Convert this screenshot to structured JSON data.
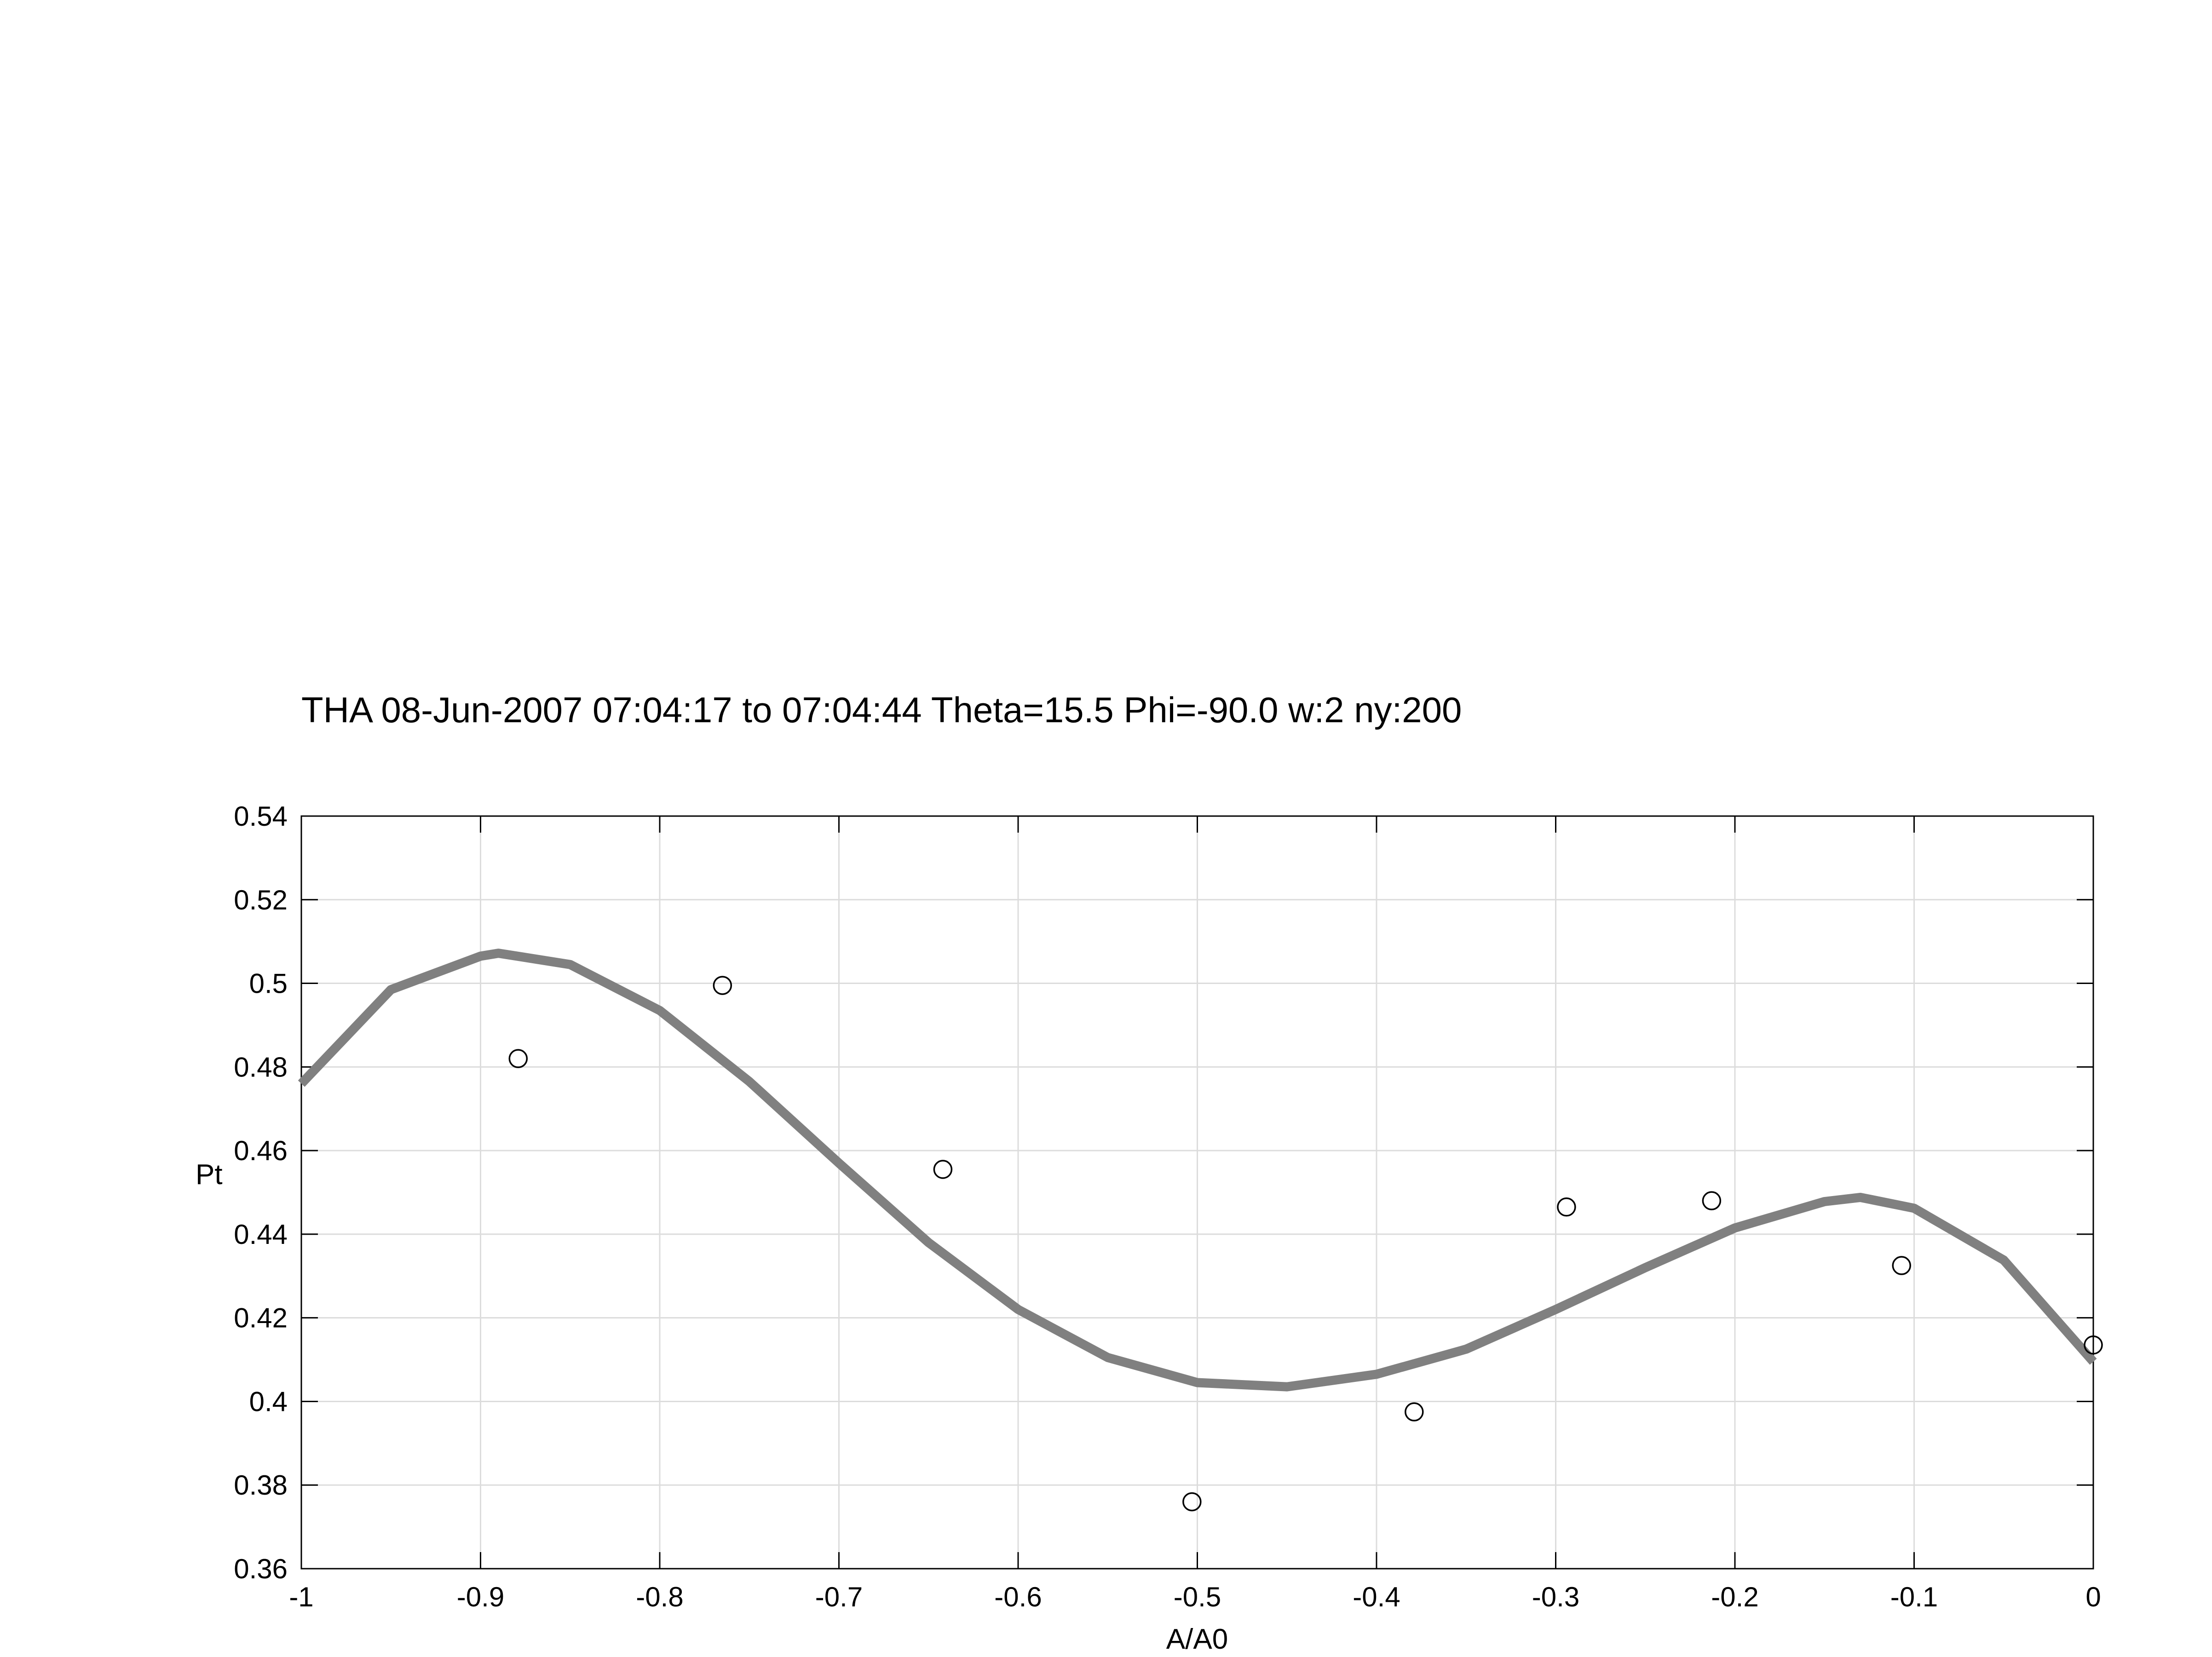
{
  "chart_data": {
    "type": "scatter",
    "title": "THA 08-Jun-2007 07:04:17 to 07:04:44 Theta=15.5 Phi=-90.0 w:2 ny:200",
    "xlabel": "A/A0",
    "ylabel": "Pt",
    "xlim": [
      -1,
      0
    ],
    "ylim": [
      0.36,
      0.54
    ],
    "xticks": [
      -1,
      -0.9,
      -0.8,
      -0.7,
      -0.6,
      -0.5,
      -0.4,
      -0.3,
      -0.2,
      -0.1,
      0
    ],
    "xtick_labels": [
      "-1",
      "-0.9",
      "-0.8",
      "-0.7",
      "-0.6",
      "-0.5",
      "-0.4",
      "-0.3",
      "-0.2",
      "-0.1",
      "0"
    ],
    "yticks": [
      0.36,
      0.38,
      0.4,
      0.42,
      0.44,
      0.46,
      0.48,
      0.5,
      0.52,
      0.54
    ],
    "ytick_labels": [
      "0.36",
      "0.38",
      "0.4",
      "0.42",
      "0.44",
      "0.46",
      "0.48",
      "0.5",
      "0.52",
      "0.54"
    ],
    "grid": true,
    "series": [
      {
        "type": "scatter",
        "marker": "open-circle",
        "color": "#000000",
        "x": [
          -0.879,
          -0.765,
          -0.642,
          -0.503,
          -0.379,
          -0.294,
          -0.213,
          -0.107,
          0.0
        ],
        "y": [
          0.482,
          0.4995,
          0.4555,
          0.376,
          0.3975,
          0.4465,
          0.448,
          0.4325,
          0.4135
        ]
      },
      {
        "type": "line",
        "color": "#808080",
        "x": [
          -1.0,
          -0.95,
          -0.9,
          -0.89,
          -0.85,
          -0.8,
          -0.75,
          -0.7,
          -0.65,
          -0.6,
          -0.55,
          -0.5,
          -0.45,
          -0.4,
          -0.35,
          -0.3,
          -0.25,
          -0.2,
          -0.15,
          -0.13,
          -0.1,
          -0.05,
          0.0
        ],
        "y": [
          0.476,
          0.4985,
          0.5065,
          0.5072,
          0.5045,
          0.4935,
          0.4765,
          0.457,
          0.438,
          0.422,
          0.4105,
          0.4045,
          0.4035,
          0.4065,
          0.4125,
          0.422,
          0.432,
          0.4415,
          0.4478,
          0.4488,
          0.4462,
          0.4338,
          0.4095
        ]
      }
    ]
  }
}
